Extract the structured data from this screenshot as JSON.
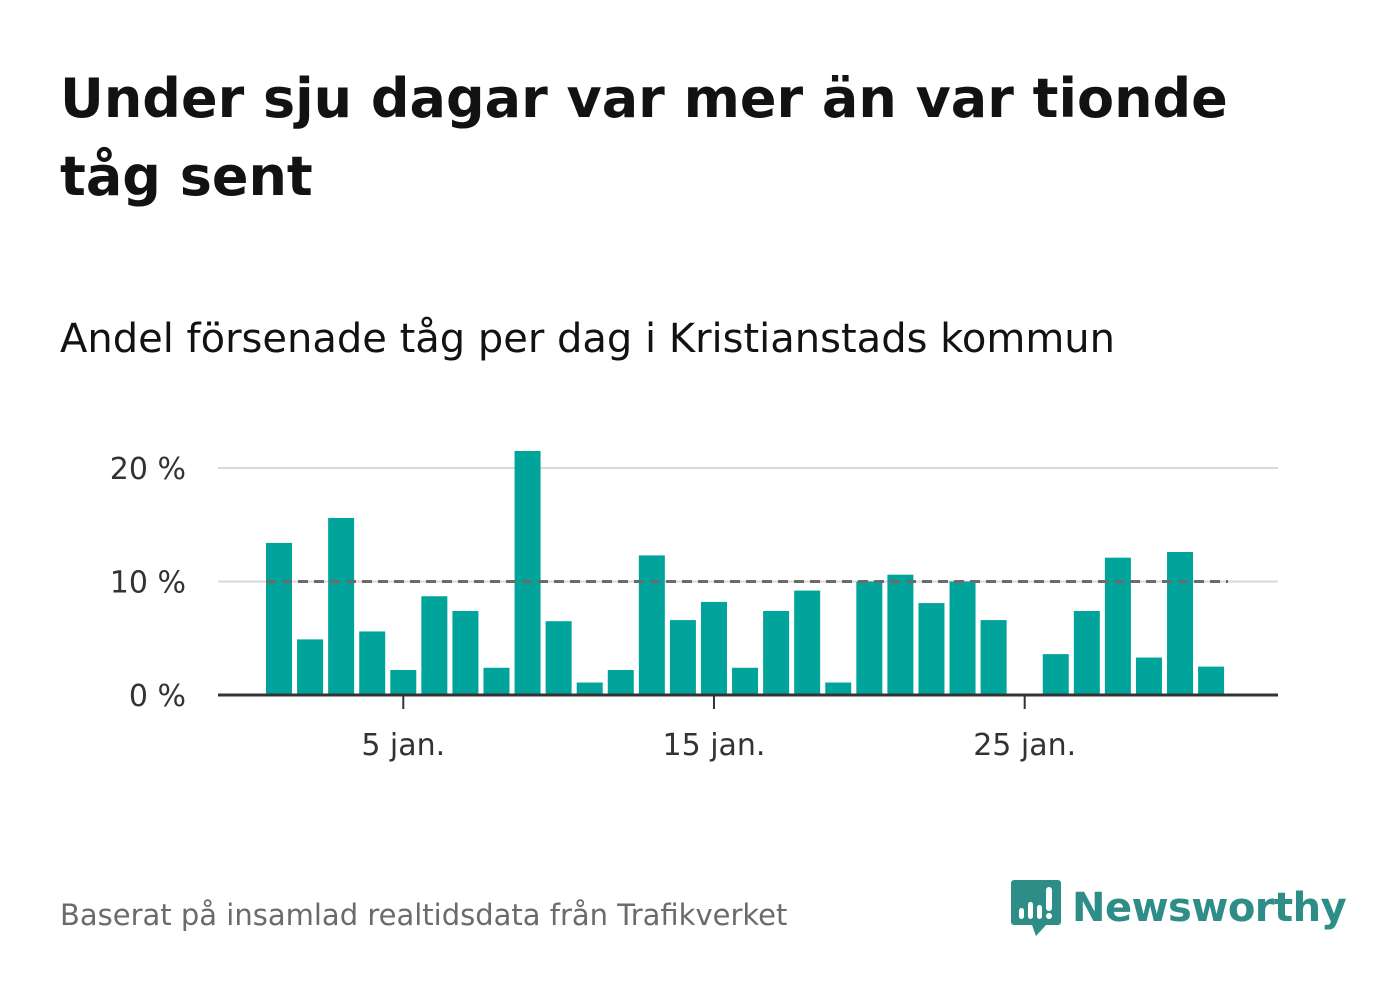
{
  "title": "Under sju dagar var mer än var tionde tåg sent",
  "subtitle": "Andel försenade tåg per dag i Kristianstads kommun",
  "source": "Baserat på insamlad realtidsdata från Trafikverket",
  "brand": {
    "name": "Newsworthy",
    "color": "#2e8d86",
    "icon": "bar-chart-speech-bubble-icon"
  },
  "colors": {
    "bar": "#00a49a",
    "reference_line": "#6b6b6b",
    "grid": "#d9d9d9",
    "axis": "#333333"
  },
  "chart_data": {
    "type": "bar",
    "x_unit": "day of January",
    "x": [
      1,
      2,
      3,
      4,
      5,
      6,
      7,
      8,
      9,
      10,
      11,
      12,
      13,
      14,
      15,
      16,
      17,
      18,
      19,
      20,
      21,
      22,
      23,
      24,
      25,
      26,
      27,
      28,
      29,
      30,
      31
    ],
    "values": [
      13.4,
      4.9,
      15.6,
      5.6,
      2.2,
      8.7,
      7.4,
      2.4,
      21.5,
      6.5,
      1.1,
      2.2,
      12.3,
      6.6,
      8.2,
      2.4,
      7.4,
      9.2,
      1.1,
      10.0,
      10.6,
      8.1,
      10.0,
      6.6,
      0.0,
      3.6,
      7.4,
      12.1,
      3.3,
      12.6,
      2.5
    ],
    "x_ticks": [
      {
        "day": 5,
        "label": "5 jan."
      },
      {
        "day": 15,
        "label": "15 jan."
      },
      {
        "day": 25,
        "label": "25 jan."
      }
    ],
    "y_ticks": [
      {
        "value": 0,
        "label": "0 %"
      },
      {
        "value": 10,
        "label": "10 %"
      },
      {
        "value": 20,
        "label": "20 %"
      }
    ],
    "ylim": [
      0,
      20
    ],
    "reference_line": {
      "value": 10,
      "style": "dashed"
    },
    "grid": true,
    "xlabel": "",
    "ylabel": ""
  }
}
